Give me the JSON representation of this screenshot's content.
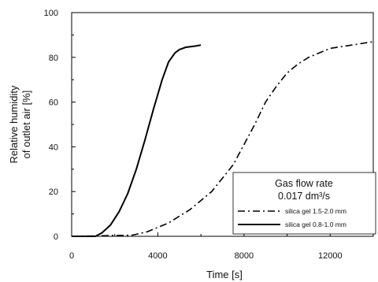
{
  "chart_data": {
    "type": "line",
    "title": "",
    "xlabel": "Time [s]",
    "ylabel": "Relative humidity of outlet air [%]",
    "ylabel_lines": [
      "Relative humidity",
      "of outlet air [%]"
    ],
    "xlim": [
      0,
      14000
    ],
    "ylim": [
      0,
      100
    ],
    "x_ticks": [
      0,
      4000,
      8000,
      12000
    ],
    "y_ticks": [
      0,
      20,
      40,
      60,
      80,
      100
    ],
    "grid": false,
    "legend": {
      "position": "bottom-right",
      "title_lines": [
        "Gas flow rate",
        "0.017 dm³/s"
      ]
    },
    "series": [
      {
        "name": "silica gel 1.5-2.0 mm",
        "style": "dash-dot",
        "color": "#000000",
        "x": [
          0,
          2800,
          3500,
          4500,
          5500,
          6500,
          7500,
          8500,
          9000,
          9500,
          10000,
          10500,
          11000,
          11500,
          12000,
          13000,
          14000
        ],
        "y": [
          0,
          0.5,
          2,
          6,
          12,
          20,
          32,
          50,
          60,
          67,
          73,
          77,
          80,
          82,
          84,
          85.5,
          87
        ]
      },
      {
        "name": "silica gel 0.8-1.0 mm",
        "style": "solid",
        "color": "#000000",
        "x": [
          0,
          1100,
          1400,
          1800,
          2200,
          2600,
          3000,
          3400,
          3800,
          4200,
          4500,
          4800,
          5000,
          5300,
          5700,
          6000
        ],
        "y": [
          0,
          0,
          1.5,
          5,
          11,
          19,
          30,
          43,
          57,
          70,
          78,
          82,
          83.5,
          84.5,
          85,
          85.5
        ]
      }
    ]
  }
}
